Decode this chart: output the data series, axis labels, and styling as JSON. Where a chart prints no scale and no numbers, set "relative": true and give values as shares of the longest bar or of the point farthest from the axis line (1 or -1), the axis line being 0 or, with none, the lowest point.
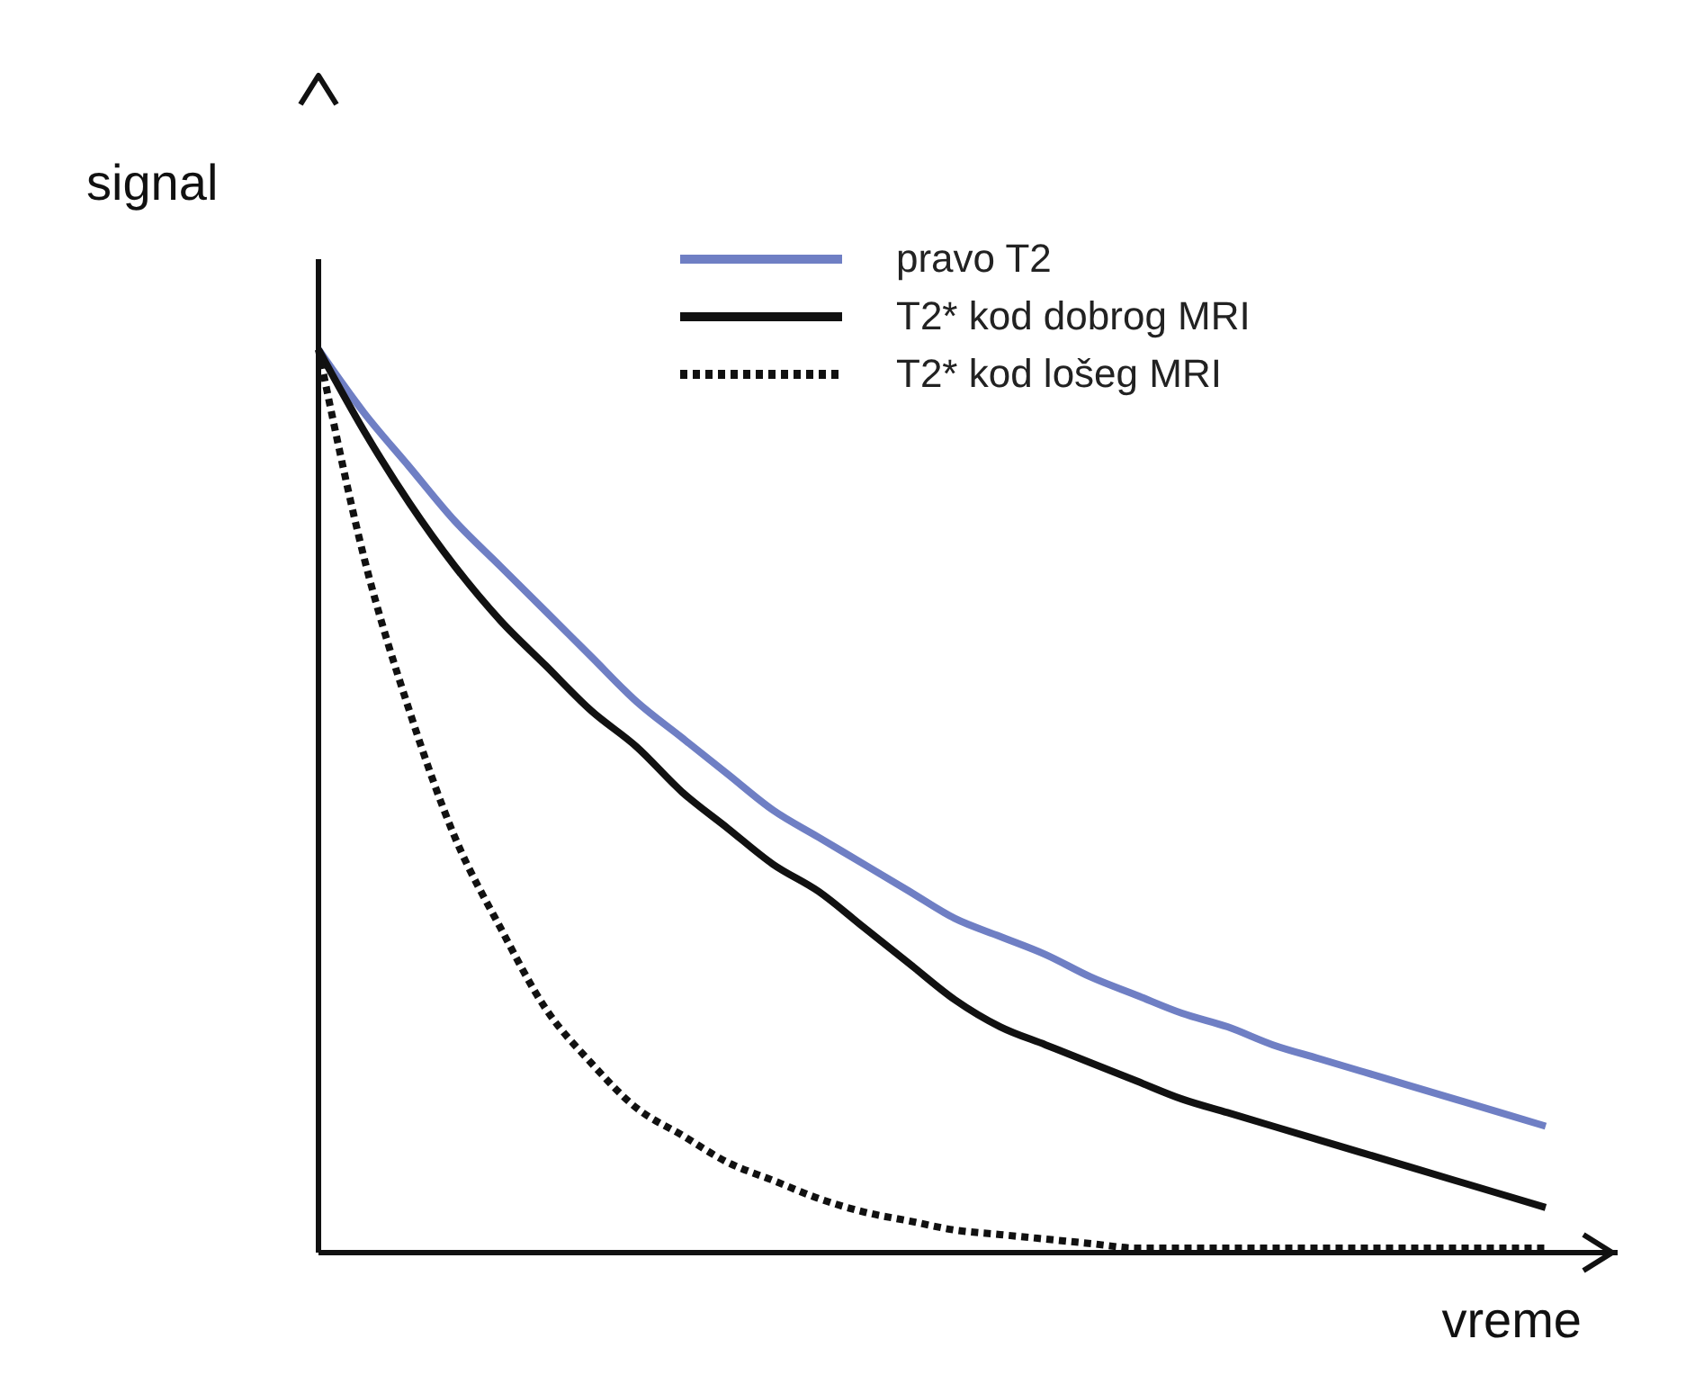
{
  "chart_data": {
    "type": "line",
    "relative": true,
    "xlabel": "vreme",
    "ylabel": "signal",
    "legend": "top",
    "grid": false,
    "categories": [
      null,
      null,
      null,
      null,
      null,
      null,
      null,
      null,
      null,
      null,
      null,
      null,
      null,
      null,
      null,
      null,
      null,
      null,
      null,
      null,
      null,
      null,
      null,
      null,
      null,
      null,
      null,
      null
    ],
    "series": [
      {
        "name": "pravo T2",
        "color": "#6f7fc4",
        "line_style": "solid",
        "values": [
          1.0,
          0.93,
          0.87,
          0.81,
          0.76,
          0.71,
          0.66,
          0.61,
          0.57,
          0.53,
          0.49,
          0.46,
          0.43,
          0.4,
          0.37,
          0.35,
          0.33,
          0.305,
          0.285,
          0.265,
          0.25,
          0.23,
          0.215,
          0.2,
          0.185,
          0.17,
          0.155,
          0.14
        ]
      },
      {
        "name": "T2* kod dobrog MRI",
        "color": "#111111",
        "line_style": "solid",
        "values": [
          1.0,
          0.91,
          0.83,
          0.76,
          0.7,
          0.65,
          0.6,
          0.56,
          0.51,
          0.47,
          0.43,
          0.4,
          0.36,
          0.32,
          0.28,
          0.25,
          0.23,
          0.21,
          0.19,
          0.17,
          0.155,
          0.14,
          0.125,
          0.11,
          0.095,
          0.08,
          0.065,
          0.05
        ]
      },
      {
        "name": "T2* kod lošeg MRI",
        "color": "#111111",
        "line_style": "dotted",
        "values": [
          1.0,
          0.77,
          0.6,
          0.46,
          0.36,
          0.27,
          0.21,
          0.16,
          0.13,
          0.1,
          0.08,
          0.06,
          0.045,
          0.035,
          0.025,
          0.02,
          0.015,
          0.01,
          0.005,
          0.005,
          0.005,
          0.005,
          0.005,
          0.005,
          0.005,
          0.005,
          0.005,
          0.005
        ]
      }
    ]
  }
}
